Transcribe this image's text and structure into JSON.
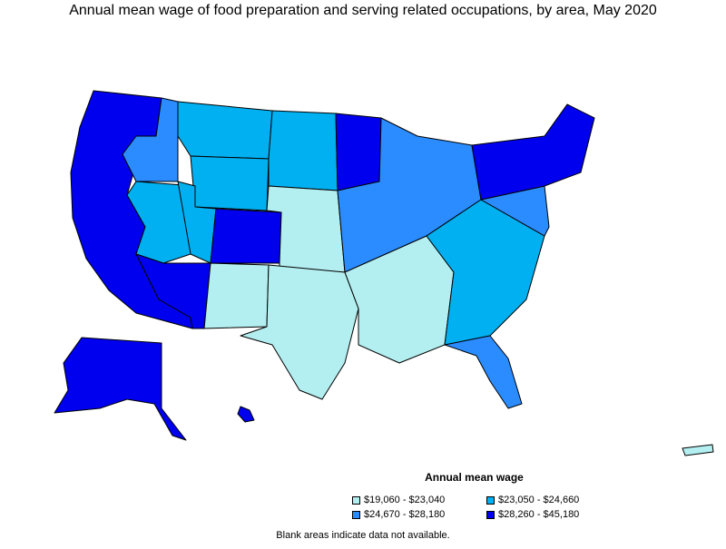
{
  "title": "Annual mean wage of food preparation and serving related occupations, by area, May 2020",
  "legend": {
    "title": "Annual mean wage",
    "items": [
      {
        "label": "$19,060 - $23,040",
        "color": "#b3eef0"
      },
      {
        "label": "$23,050 - $24,660",
        "color": "#00b0f0"
      },
      {
        "label": "$24,670 - $28,180",
        "color": "#2a8cff"
      },
      {
        "label": "$28,260 - $45,180",
        "color": "#0000ee"
      }
    ]
  },
  "note": "Blank areas indicate data not available.",
  "regions": [
    {
      "id": "pacific-coast",
      "wage_class": 3
    },
    {
      "id": "nevada",
      "wage_class": 1
    },
    {
      "id": "idaho-oregon-east",
      "wage_class": 2
    },
    {
      "id": "montana",
      "wage_class": 1
    },
    {
      "id": "wyoming",
      "wage_class": 1
    },
    {
      "id": "colorado",
      "wage_class": 3
    },
    {
      "id": "utah",
      "wage_class": 1
    },
    {
      "id": "arizona",
      "wage_class": 3
    },
    {
      "id": "new-mexico",
      "wage_class": 0
    },
    {
      "id": "dakotas",
      "wage_class": 1
    },
    {
      "id": "minnesota",
      "wage_class": 3
    },
    {
      "id": "great-plains",
      "wage_class": 0
    },
    {
      "id": "midwest",
      "wage_class": 2
    },
    {
      "id": "texas",
      "wage_class": 0
    },
    {
      "id": "south",
      "wage_class": 0
    },
    {
      "id": "southeast",
      "wage_class": 1
    },
    {
      "id": "florida",
      "wage_class": 2
    },
    {
      "id": "mid-atlantic",
      "wage_class": 2
    },
    {
      "id": "northeast",
      "wage_class": 3
    },
    {
      "id": "alaska",
      "wage_class": 3
    },
    {
      "id": "hawaii",
      "wage_class": 3
    },
    {
      "id": "puerto-rico",
      "wage_class": 0
    }
  ]
}
